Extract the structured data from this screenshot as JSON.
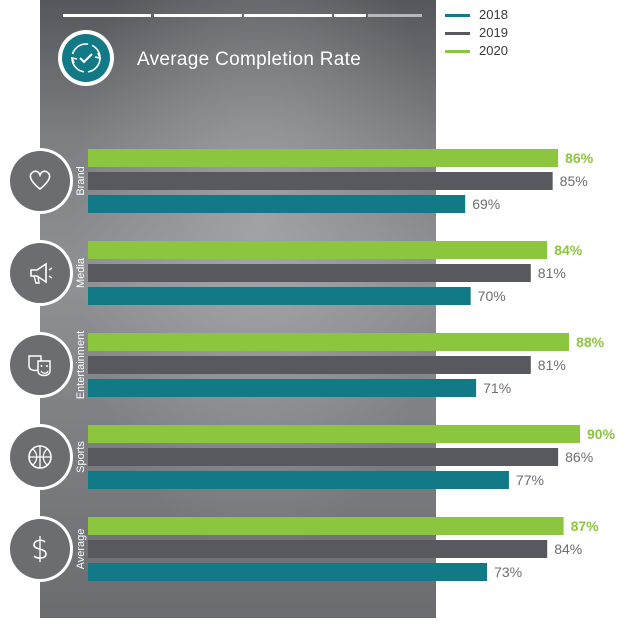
{
  "chart_data": {
    "type": "bar",
    "orientation": "horizontal",
    "title": "Average Completion Rate",
    "categories": [
      "Brand",
      "Media",
      "Entertainment",
      "Sports",
      "Average"
    ],
    "series": [
      {
        "name": "2020",
        "values": [
          86,
          84,
          88,
          90,
          87
        ],
        "color": "#8cc63f"
      },
      {
        "name": "2019",
        "values": [
          85,
          81,
          81,
          86,
          84
        ],
        "color": "#58595e"
      },
      {
        "name": "2018",
        "values": [
          69,
          70,
          71,
          77,
          73
        ],
        "color": "#127a86"
      }
    ],
    "value_format": "{v}%",
    "legend": {
      "position": "top-right",
      "order": [
        "2018",
        "2019",
        "2020"
      ]
    },
    "grid": false
  },
  "icons": [
    "refresh-check-icon",
    "heart-icon",
    "megaphone-icon",
    "theater-masks-icon",
    "basketball-icon",
    "dollar-icon"
  ],
  "colors": {
    "label_2020": "#8cc63f",
    "label_other": "#6d6e71",
    "icon_circle": "#6b6d70"
  }
}
